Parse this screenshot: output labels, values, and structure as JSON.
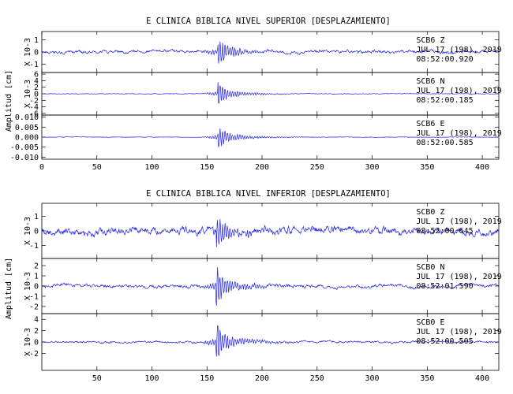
{
  "chart_data": [
    {
      "type": "line",
      "title": "E CLINICA BIBLICA NIVEL SUPERIOR [DESPLAZAMIENTO]",
      "ylabel": "Amplitud [cm]",
      "xlim": [
        0,
        415
      ],
      "x_ticks": [
        "0",
        "50",
        "100",
        "150",
        "200",
        "250",
        "300",
        "350",
        "400"
      ],
      "x_tick_values": [
        0,
        50,
        100,
        150,
        200,
        250,
        300,
        350,
        400
      ],
      "panels": [
        {
          "ylim": [
            -1.7,
            1.7
          ],
          "y_ticks": [
            "-1",
            "0",
            "1"
          ],
          "y_tick_values": [
            -1,
            0,
            1
          ],
          "y_scale_label": "X 10-3",
          "station": "SCB6    Z",
          "date": "JUL 17 (198), 2019",
          "time": "08:52:00.920",
          "burst": 1.6,
          "noise": 0.35
        },
        {
          "ylim": [
            -6.5,
            6.5
          ],
          "y_ticks": [
            "-6",
            "-4",
            "-2",
            "0",
            "2",
            "4",
            "6"
          ],
          "y_tick_values": [
            -6,
            -4,
            -2,
            0,
            2,
            4,
            6
          ],
          "y_scale_label": "X 10-3",
          "station": "SCB6    N",
          "date": "JUL 17 (198), 2019",
          "time": "08:52:00.185",
          "burst": 4.8,
          "noise": 0.25
        },
        {
          "ylim": [
            -0.011,
            0.011
          ],
          "y_ticks": [
            "-0.010",
            "-0.005",
            "0.000",
            "0.005",
            "0.010"
          ],
          "y_tick_values": [
            -0.01,
            -0.005,
            0,
            0.005,
            0.01
          ],
          "y_scale_label": "",
          "station": "SCB6    E",
          "date": "JUL 17 (198), 2019",
          "time": "08:52:00.585",
          "burst": 0.0085,
          "noise": 0.0003
        }
      ]
    },
    {
      "type": "line",
      "title": "E CLINICA BIBLICA NIVEL INFERIOR [DESPLAZAMIENTO]",
      "ylabel": "Amplitud [cm]",
      "xlim": [
        0,
        415
      ],
      "x_ticks": [
        "50",
        "100",
        "150",
        "200",
        "250",
        "300",
        "350",
        "400"
      ],
      "x_tick_values": [
        50,
        100,
        150,
        200,
        250,
        300,
        350,
        400
      ],
      "panels": [
        {
          "ylim": [
            -1.9,
            1.9
          ],
          "y_ticks": [
            "-1",
            "0",
            "1"
          ],
          "y_tick_values": [
            -1,
            0,
            1
          ],
          "y_scale_label": "X 10-3",
          "station": "SCB0    Z",
          "date": "JUL 17 (198), 2019",
          "time": "08:52:00.645",
          "burst": 1.7,
          "noise": 0.7
        },
        {
          "ylim": [
            -2.7,
            2.7
          ],
          "y_ticks": [
            "-2",
            "-1",
            "0",
            "1",
            "2"
          ],
          "y_tick_values": [
            -2,
            -1,
            0,
            1,
            2
          ],
          "y_scale_label": "X 10-3",
          "station": "SCB0    N",
          "date": "JUL 17 (198), 2019",
          "time": "08:52:01.590",
          "burst": 2.4,
          "noise": 0.45
        },
        {
          "ylim": [
            -5,
            5
          ],
          "y_ticks": [
            "-2",
            "0",
            "2",
            "4"
          ],
          "y_tick_values": [
            -2,
            0,
            2,
            4
          ],
          "y_scale_label": "X 10-3",
          "station": "SCB0    E",
          "date": "JUL 17 (198), 2019",
          "time": "08:52:00.505",
          "burst": 4.6,
          "noise": 0.5
        }
      ]
    }
  ]
}
